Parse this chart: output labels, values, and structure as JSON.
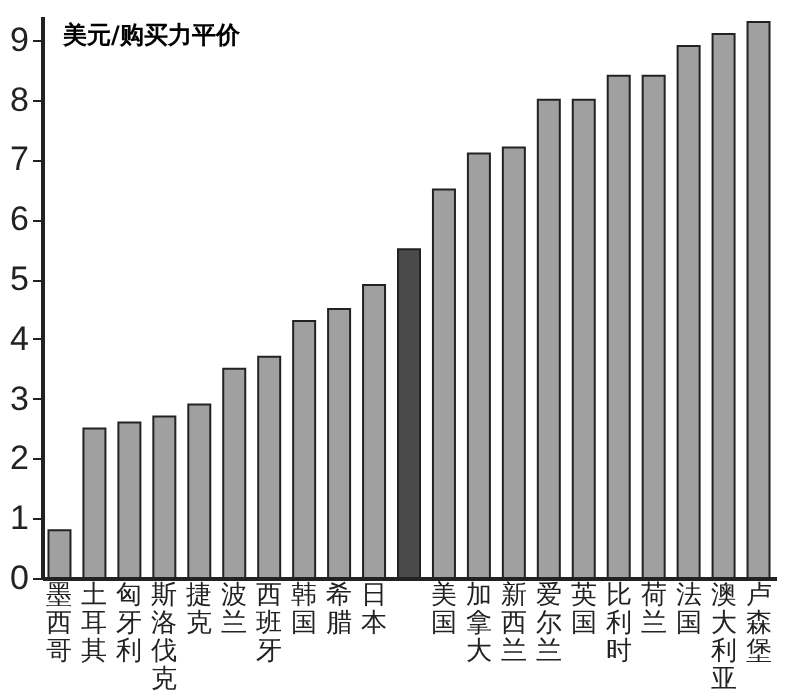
{
  "chart_data": {
    "type": "bar",
    "ylabel": "美元/购买力平价",
    "categories": [
      "墨西哥",
      "土耳其",
      "匈牙利",
      "斯洛伐克",
      "捷克",
      "波兰",
      "西班牙",
      "韩国",
      "希腊",
      "日本",
      null,
      "美国",
      "加拿大",
      "新西兰",
      "爱尔兰",
      "英国",
      "比利时",
      "荷兰",
      "法国",
      "澳大利亚",
      "卢森堡"
    ],
    "values": [
      0.8,
      2.5,
      2.6,
      2.7,
      2.9,
      3.5,
      3.7,
      4.3,
      4.5,
      4.9,
      5.5,
      6.5,
      7.1,
      7.2,
      8.0,
      8.0,
      8.4,
      8.4,
      8.9,
      9.1,
      9.3
    ],
    "colors": [
      "#a0a0a0",
      "#a0a0a0",
      "#a0a0a0",
      "#a0a0a0",
      "#a0a0a0",
      "#a0a0a0",
      "#a0a0a0",
      "#a0a0a0",
      "#a0a0a0",
      "#a0a0a0",
      "#4a4a4a",
      "#a0a0a0",
      "#a0a0a0",
      "#a0a0a0",
      "#a0a0a0",
      "#a0a0a0",
      "#a0a0a0",
      "#a0a0a0",
      "#a0a0a0",
      "#a0a0a0",
      "#a0a0a0"
    ],
    "ylim": [
      0,
      9.4
    ],
    "yticks": [
      0,
      1,
      2,
      3,
      4,
      5,
      6,
      7,
      8,
      9
    ],
    "grid": false
  }
}
